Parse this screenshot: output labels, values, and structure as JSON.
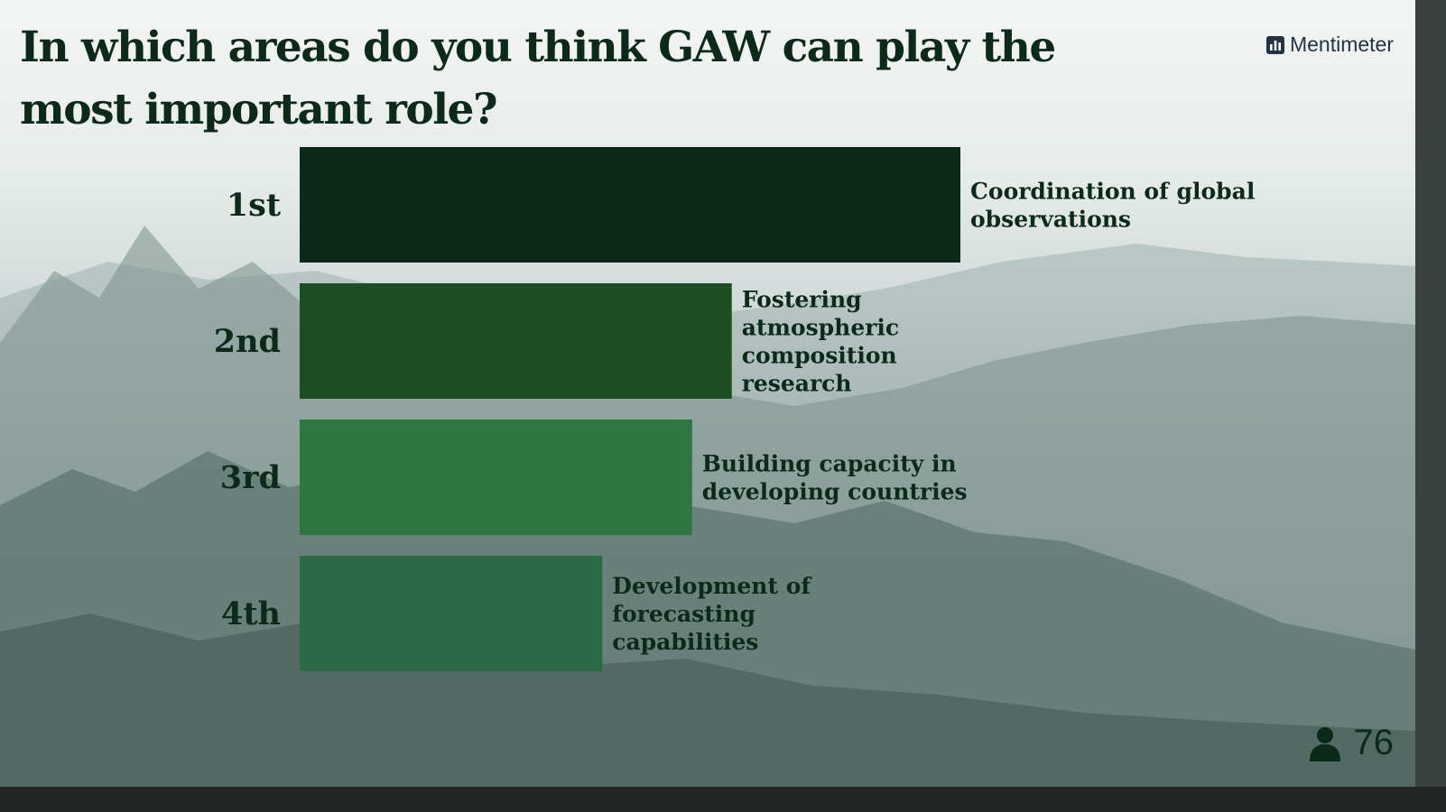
{
  "slide": {
    "title": "In which areas do you think GAW can play the most important role?",
    "brand": "Mentimeter",
    "brand_icon": "mentimeter-logo-icon",
    "participants_icon": "person-icon",
    "participants_count": "76"
  },
  "colors": {
    "bar_1": "#0c2a1a",
    "bar_2": "#1f4d22",
    "bar_3": "#2e7740",
    "bar_4": "#2a6a45",
    "text": "#0c2a1a"
  },
  "chart_data": {
    "type": "bar",
    "orientation": "horizontal",
    "categories": [
      "1st",
      "2nd",
      "3rd",
      "4th"
    ],
    "labels": [
      "Coordination of global observations",
      "Fostering atmospheric composition research",
      "Building capacity in developing countries",
      "Development of forecasting capabilities"
    ],
    "values": [
      100,
      65.4,
      59.4,
      45.8
    ],
    "value_unit": "relative score (% of top)",
    "grid": false,
    "legend": "none"
  }
}
